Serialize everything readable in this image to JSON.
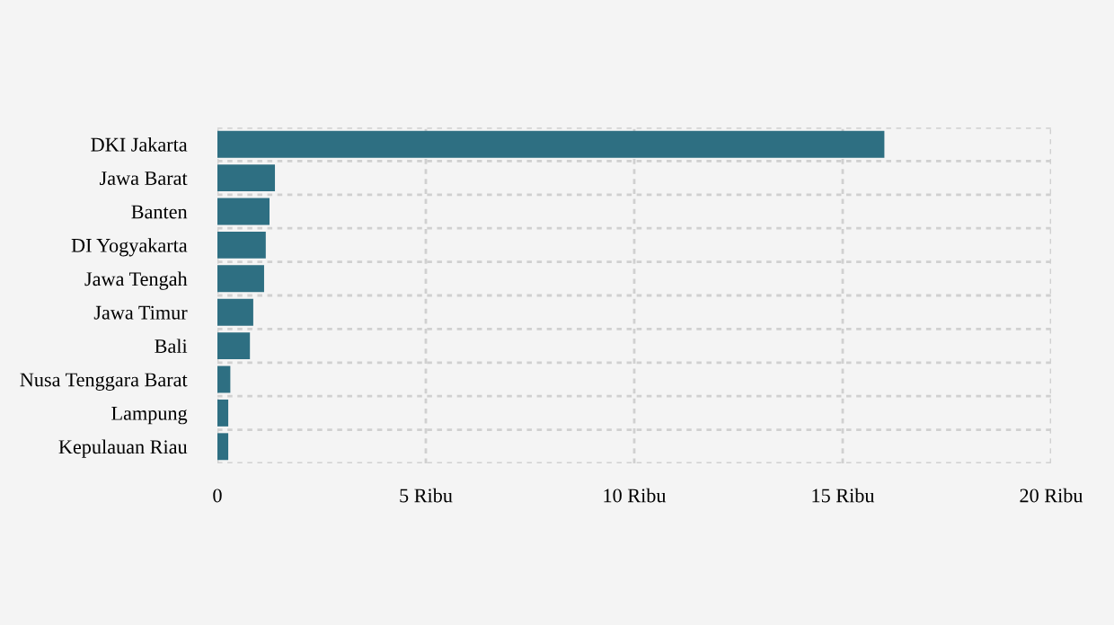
{
  "chart_data": {
    "type": "bar",
    "orientation": "horizontal",
    "categories": [
      "DKI Jakarta",
      "Jawa Barat",
      "Banten",
      "DI Yogyakarta",
      "Jawa Tengah",
      "Jawa Timur",
      "Bali",
      "Nusa Tenggara Barat",
      "Lampung",
      "Kepulauan Riau"
    ],
    "values": [
      16.0,
      1.38,
      1.25,
      1.16,
      1.12,
      0.86,
      0.78,
      0.31,
      0.26,
      0.26
    ],
    "color": "#2e6f82",
    "xlim": [
      0,
      20
    ],
    "xticks": [
      0,
      {
        "value": 5,
        "label": "5 Ribu"
      },
      {
        "value": 10,
        "label": "10 Ribu"
      },
      {
        "value": 15,
        "label": "15 Ribu"
      },
      {
        "value": 20,
        "label": "20 Ribu"
      }
    ],
    "grid": true
  }
}
